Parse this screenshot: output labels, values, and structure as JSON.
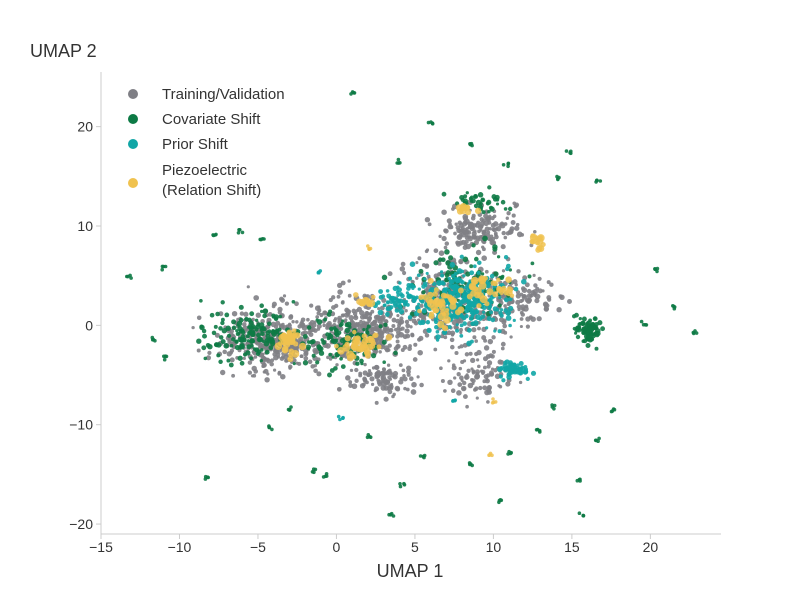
{
  "chart_data": {
    "type": "scatter",
    "title": "",
    "xlabel": "UMAP 1",
    "ylabel": "UMAP 2",
    "xlim": [
      -15,
      24.5
    ],
    "ylim": [
      -21,
      25.5
    ],
    "xticks": [
      -15,
      -10,
      -5,
      0,
      5,
      10,
      15,
      20
    ],
    "yticks": [
      -20,
      -10,
      0,
      10,
      20
    ],
    "xtick_labels": [
      "−15",
      "−10",
      "−5",
      "0",
      "5",
      "10",
      "15",
      "20"
    ],
    "ytick_labels": [
      "−20",
      "−10",
      "0",
      "10",
      "20"
    ],
    "grid": false,
    "legend_position": "top-left",
    "series": [
      {
        "name": "Training/Validation",
        "color": "#7f7f85",
        "clusters": [
          {
            "cx": -4,
            "cy": -1.5,
            "sx": 3.0,
            "sy": 2.8,
            "n": 360
          },
          {
            "cx": 1.5,
            "cy": -0.5,
            "sx": 3.0,
            "sy": 3.0,
            "n": 320
          },
          {
            "cx": 7.5,
            "cy": 2.5,
            "sx": 3.6,
            "sy": 4.2,
            "n": 360
          },
          {
            "cx": 9,
            "cy": 9.5,
            "sx": 2.5,
            "sy": 2.0,
            "n": 160
          },
          {
            "cx": 12,
            "cy": 2.5,
            "sx": 1.8,
            "sy": 2.2,
            "n": 90
          },
          {
            "cx": 9,
            "cy": -5,
            "sx": 2.0,
            "sy": 2.0,
            "n": 90
          },
          {
            "cx": 3,
            "cy": -5.5,
            "sx": 2.0,
            "sy": 1.5,
            "n": 90
          }
        ]
      },
      {
        "name": "Covariate Shift",
        "color": "#0d7a45",
        "clusters": [
          {
            "cx": -5.5,
            "cy": -1,
            "sx": 2.8,
            "sy": 2.2,
            "n": 150
          },
          {
            "cx": 0.5,
            "cy": -1.5,
            "sx": 2.6,
            "sy": 2.4,
            "n": 110
          },
          {
            "cx": 16,
            "cy": -0.5,
            "sx": 0.9,
            "sy": 1.3,
            "n": 80
          },
          {
            "cx": 8,
            "cy": 4,
            "sx": 2.8,
            "sy": 3.2,
            "n": 110
          },
          {
            "cx": 9,
            "cy": 12.5,
            "sx": 1.8,
            "sy": 0.8,
            "n": 40
          }
        ],
        "outliers": [
          [
            1,
            23.3
          ],
          [
            6,
            20.4
          ],
          [
            8.6,
            18.1
          ],
          [
            10.8,
            16.2
          ],
          [
            14.8,
            17.4
          ],
          [
            14.2,
            14.8
          ],
          [
            16.7,
            14.4
          ],
          [
            4,
            16.5
          ],
          [
            -13.2,
            4.9
          ],
          [
            -11,
            5.8
          ],
          [
            -7.8,
            9.1
          ],
          [
            -6.1,
            9.5
          ],
          [
            -4.7,
            8.7
          ],
          [
            20.3,
            5.6
          ],
          [
            22.8,
            -0.7
          ],
          [
            21.4,
            1.8
          ],
          [
            19.6,
            0.2
          ],
          [
            -11.6,
            -1.4
          ],
          [
            -10.9,
            -3.3
          ],
          [
            -8.3,
            -15.3
          ],
          [
            -4.2,
            -10.3
          ],
          [
            -1.5,
            -14.6
          ],
          [
            -0.7,
            -15.1
          ],
          [
            2.1,
            -11.1
          ],
          [
            3.5,
            -19
          ],
          [
            4.2,
            -16.1
          ],
          [
            5.5,
            -13.3
          ],
          [
            8.5,
            -14
          ],
          [
            10.4,
            -17.7
          ],
          [
            12.9,
            -10.6
          ],
          [
            15.5,
            -15.6
          ],
          [
            15.6,
            -19
          ],
          [
            13.8,
            -8.2
          ],
          [
            17.6,
            -8.5
          ],
          [
            16.6,
            -11.5
          ],
          [
            -3,
            -8.4
          ],
          [
            11,
            -12.8
          ]
        ]
      },
      {
        "name": "Prior Shift",
        "color": "#11a6a6",
        "clusters": [
          {
            "cx": 8,
            "cy": 2.5,
            "sx": 2.8,
            "sy": 2.8,
            "n": 340
          },
          {
            "cx": 11.2,
            "cy": -4.5,
            "sx": 1.0,
            "sy": 0.7,
            "n": 60
          },
          {
            "cx": 4,
            "cy": 2.5,
            "sx": 1.2,
            "sy": 1.5,
            "n": 60
          }
        ],
        "outliers": [
          [
            7.5,
            -7.5
          ],
          [
            -1,
            5.3
          ],
          [
            0.3,
            -9.3
          ]
        ]
      },
      {
        "name": "Piezoelectric\n(Relation Shift)",
        "color": "#f0c24f",
        "clusters": [
          {
            "cx": -3,
            "cy": -1.5,
            "sx": 0.6,
            "sy": 1.0,
            "n": 40
          },
          {
            "cx": 1.5,
            "cy": -2,
            "sx": 1.2,
            "sy": 1.2,
            "n": 40
          },
          {
            "cx": 6.5,
            "cy": 2,
            "sx": 1.0,
            "sy": 1.5,
            "n": 40
          },
          {
            "cx": 9.5,
            "cy": 3.5,
            "sx": 1.5,
            "sy": 1.5,
            "n": 35
          },
          {
            "cx": 12.8,
            "cy": 8.5,
            "sx": 0.6,
            "sy": 0.6,
            "n": 15
          },
          {
            "cx": 2,
            "cy": 2.5,
            "sx": 0.6,
            "sy": 0.6,
            "n": 12
          },
          {
            "cx": 8,
            "cy": 11.5,
            "sx": 0.8,
            "sy": 0.8,
            "n": 10
          }
        ],
        "outliers": [
          [
            10,
            -7.6
          ],
          [
            9.8,
            -12.9
          ],
          [
            2.1,
            7.8
          ]
        ]
      }
    ],
    "annotations": []
  }
}
